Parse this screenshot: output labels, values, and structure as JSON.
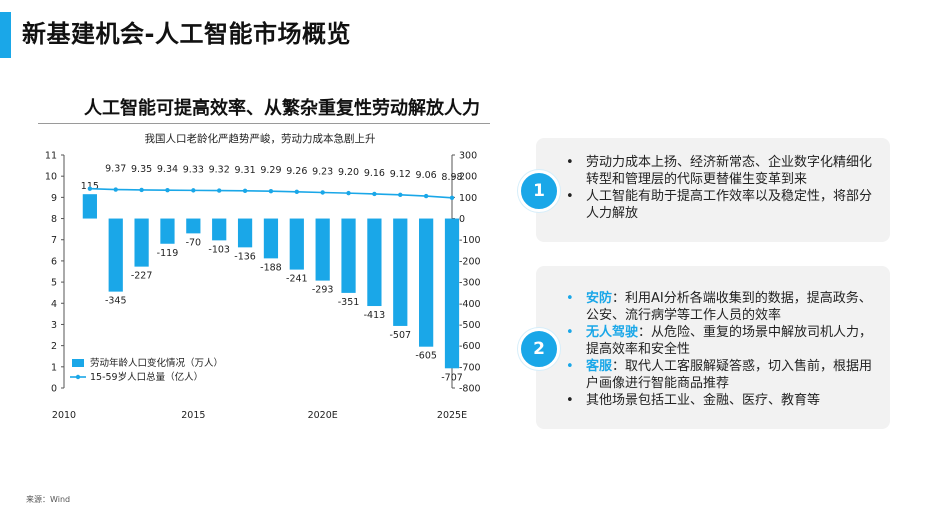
{
  "header": {
    "title": "新基建机会-人工智能市场概览"
  },
  "section": {
    "title": "人工智能可提高效率、从繁杂重复性劳动解放人力"
  },
  "chart_data": {
    "type": "bar",
    "title": "我国人口老龄化严趋势严峻，劳动力成本急剧上升",
    "x": [
      2011,
      2012,
      2013,
      2014,
      2015,
      2016,
      2017,
      2018,
      2019,
      2020,
      2021,
      2022,
      2023,
      2024,
      2025
    ],
    "x_ticks": [
      "2010",
      "2015",
      "2020E",
      "2025E"
    ],
    "y_left": {
      "ylim": [
        0,
        11
      ],
      "ticks": [
        "0",
        "1",
        "2",
        "3",
        "4",
        "5",
        "6",
        "7",
        "8",
        "9",
        "10",
        "11"
      ]
    },
    "y_right": {
      "ylim": [
        -800,
        300
      ],
      "ticks": [
        "300",
        "200",
        "100",
        "0",
        "-100",
        "-200",
        "-300",
        "-400",
        "-500",
        "-600",
        "-700",
        "-800"
      ]
    },
    "series": [
      {
        "name": "劳动年龄人口变化情况（万人）",
        "type": "bar",
        "axis": "right",
        "color": "#1aa7e8",
        "values": [
          115,
          -345,
          -227,
          -119,
          -70,
          -103,
          -136,
          -188,
          -241,
          -293,
          -351,
          -413,
          -507,
          -605,
          -707
        ],
        "labels": [
          "115",
          "-345",
          "-227",
          "-119",
          "-70",
          "-103",
          "-136",
          "-188",
          "-241",
          "-293",
          "-351",
          "-413",
          "-507",
          "-605",
          "-707"
        ]
      },
      {
        "name": "15-59岁人口总量（亿人）",
        "type": "line",
        "axis": "left",
        "color": "#1aa7e8",
        "values": [
          9.41,
          9.37,
          9.35,
          9.34,
          9.33,
          9.32,
          9.31,
          9.29,
          9.26,
          9.23,
          9.2,
          9.16,
          9.12,
          9.06,
          8.98
        ],
        "labels": [
          "",
          "9.37",
          "9.35",
          "9.34",
          "9.33",
          "9.32",
          "9.31",
          "9.29",
          "9.26",
          "9.23",
          "9.20",
          "9.16",
          "9.12",
          "9.06",
          "8.98"
        ]
      }
    ],
    "legend": "bottom-left",
    "grid": false
  },
  "cards": [
    {
      "number": "1",
      "items": [
        {
          "kw": "",
          "text": "劳动力成本上扬、经济新常态、企业数字化精细化转型和管理层的代际更替催生变革到来"
        },
        {
          "kw": "",
          "text": "人工智能有助于提高工作效率以及稳定性，将部分人力解放"
        }
      ]
    },
    {
      "number": "2",
      "items": [
        {
          "kw": "安防",
          "text": "：利用AI分析各端收集到的数据，提高政务、公安、流行病学等工作人员的效率"
        },
        {
          "kw": "无人驾驶",
          "text": "：从危险、重复的场景中解放司机人力，提高效率和安全性"
        },
        {
          "kw": "客服",
          "text": "：取代人工客服解疑答惑，切入售前，根据用户画像进行智能商品推荐"
        },
        {
          "kw": "",
          "text": "其他场景包括工业、金融、医疗、教育等"
        }
      ]
    }
  ],
  "footer": {
    "source": "来源：Wind"
  }
}
